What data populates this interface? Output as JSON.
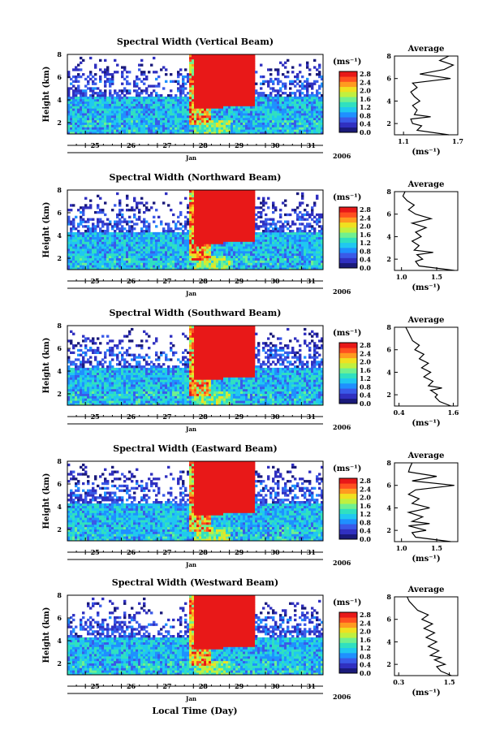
{
  "figure": {
    "xlabel": "Local Time (Day)",
    "colors": {
      "scale": [
        "#1a1a7a",
        "#3030c0",
        "#3a5ae8",
        "#1f90ff",
        "#20c8f0",
        "#30e0c0",
        "#70f090",
        "#c0f040",
        "#f0e020",
        "#ff9a20",
        "#ff5020",
        "#e81818"
      ]
    }
  },
  "chart_data": [
    {
      "type": "heatmap",
      "title": "Spectral Width (Vertical Beam)",
      "ylabel": "Height (km)",
      "ylim": [
        1,
        8
      ],
      "yticks": [
        2,
        4,
        6,
        8
      ],
      "xlim": [
        24.5,
        31.6
      ],
      "xticks": [
        "25",
        "26",
        "27",
        "28",
        "29",
        "30",
        "31"
      ],
      "month": "Jan",
      "year": "2006",
      "colorbar": {
        "unit": "(ms⁻¹)",
        "ticks": [
          "2.8",
          "2.4",
          "2.0",
          "1.6",
          "1.2",
          "0.8",
          "0.4",
          "0.0"
        ],
        "range": [
          0,
          2.8
        ]
      },
      "average_profile": {
        "title": "Average",
        "xlabel": "(ms⁻¹)",
        "xticks": [
          "1.1",
          "1.7"
        ],
        "xlim": [
          1.0,
          1.7
        ],
        "ylim": [
          1,
          8
        ],
        "yticks": [
          2,
          4,
          6,
          8
        ],
        "height": [
          1.0,
          1.4,
          1.8,
          2.0,
          2.4,
          2.6,
          2.8,
          3.2,
          3.6,
          4.0,
          4.4,
          4.8,
          5.2,
          5.6,
          6.0,
          6.4,
          6.8,
          7.2,
          7.6,
          8.0
        ],
        "value": [
          1.6,
          1.25,
          1.3,
          1.2,
          1.18,
          1.4,
          1.22,
          1.25,
          1.2,
          1.28,
          1.22,
          1.18,
          1.25,
          1.2,
          1.62,
          1.28,
          1.55,
          1.65,
          1.5,
          1.6
        ]
      }
    },
    {
      "type": "heatmap",
      "title": "Spectral Width (Northward Beam)",
      "ylabel": "Height (km)",
      "ylim": [
        1,
        8
      ],
      "yticks": [
        2,
        4,
        6,
        8
      ],
      "xlim": [
        24.5,
        31.6
      ],
      "xticks": [
        "25",
        "26",
        "27",
        "28",
        "29",
        "30",
        "31"
      ],
      "month": "Jan",
      "year": "2006",
      "colorbar": {
        "unit": "(ms⁻¹)",
        "ticks": [
          "2.8",
          "2.4",
          "2.0",
          "1.6",
          "1.2",
          "0.8",
          "0.4",
          "0.0"
        ],
        "range": [
          0,
          2.8
        ]
      },
      "average_profile": {
        "title": "Average",
        "xlabel": "(ms⁻¹)",
        "xticks": [
          "1.0",
          "1.5"
        ],
        "xlim": [
          0.9,
          1.8
        ],
        "ylim": [
          1,
          8
        ],
        "yticks": [
          2,
          4,
          6,
          8
        ],
        "height": [
          1.0,
          1.4,
          1.8,
          2.0,
          2.4,
          2.6,
          2.8,
          3.2,
          3.6,
          4.0,
          4.4,
          4.8,
          5.2,
          5.6,
          6.0,
          6.4,
          6.8,
          7.2,
          7.6,
          8.0
        ],
        "value": [
          1.75,
          1.25,
          1.2,
          1.3,
          1.22,
          1.45,
          1.18,
          1.25,
          1.15,
          1.28,
          1.2,
          1.35,
          1.15,
          1.42,
          1.2,
          1.1,
          1.18,
          1.08,
          1.02,
          1.05
        ]
      }
    },
    {
      "type": "heatmap",
      "title": "Spectral Width (Southward Beam)",
      "ylabel": "Height (km)",
      "ylim": [
        1,
        8
      ],
      "yticks": [
        2,
        4,
        6,
        8
      ],
      "xlim": [
        24.5,
        31.6
      ],
      "xticks": [
        "25",
        "26",
        "27",
        "28",
        "29",
        "30",
        "31"
      ],
      "month": "Jan",
      "year": "2006",
      "colorbar": {
        "unit": "(ms⁻¹)",
        "ticks": [
          "2.8",
          "2.4",
          "2.0",
          "1.6",
          "1.2",
          "0.8",
          "0.4",
          "0.0"
        ],
        "range": [
          0,
          2.8
        ]
      },
      "average_profile": {
        "title": "Average",
        "xlabel": "(ms⁻¹)",
        "xticks": [
          "0.4",
          "1.6"
        ],
        "xlim": [
          0.3,
          1.7
        ],
        "ylim": [
          1,
          8
        ],
        "yticks": [
          2,
          4,
          6,
          8
        ],
        "height": [
          1.0,
          1.4,
          1.8,
          2.0,
          2.4,
          2.6,
          2.8,
          3.2,
          3.6,
          4.0,
          4.4,
          4.8,
          5.2,
          5.6,
          6.0,
          6.4,
          6.8,
          7.2,
          7.6,
          8.0
        ],
        "value": [
          1.55,
          1.3,
          1.2,
          1.25,
          1.1,
          1.35,
          1.05,
          1.15,
          0.95,
          1.1,
          0.9,
          1.05,
          0.85,
          0.95,
          0.75,
          0.85,
          0.7,
          0.65,
          0.6,
          0.55
        ]
      }
    },
    {
      "type": "heatmap",
      "title": "Spectral Width (Eastward Beam)",
      "ylabel": "Height (km)",
      "ylim": [
        1,
        8
      ],
      "yticks": [
        2,
        4,
        6,
        8
      ],
      "xlim": [
        24.5,
        31.6
      ],
      "xticks": [
        "25",
        "26",
        "27",
        "28",
        "29",
        "30",
        "31"
      ],
      "month": "Jan",
      "year": "2006",
      "colorbar": {
        "unit": "(ms⁻¹)",
        "ticks": [
          "2.8",
          "2.4",
          "2.0",
          "1.6",
          "1.2",
          "0.8",
          "0.4",
          "0.0"
        ],
        "range": [
          0,
          2.8
        ]
      },
      "average_profile": {
        "title": "Average",
        "xlabel": "(ms⁻¹)",
        "xticks": [
          "1.0",
          "1.5"
        ],
        "xlim": [
          0.9,
          1.8
        ],
        "ylim": [
          1,
          8
        ],
        "yticks": [
          2,
          4,
          6,
          8
        ],
        "height": [
          1.0,
          1.4,
          1.8,
          2.0,
          2.4,
          2.6,
          2.8,
          3.2,
          3.6,
          4.0,
          4.4,
          4.8,
          5.2,
          5.6,
          6.0,
          6.4,
          6.8,
          7.2,
          7.6,
          8.0
        ],
        "value": [
          1.7,
          1.2,
          1.15,
          1.35,
          1.1,
          1.4,
          1.15,
          1.3,
          1.1,
          1.4,
          1.15,
          1.25,
          1.1,
          1.2,
          1.75,
          1.15,
          1.5,
          1.1,
          1.12,
          1.15
        ]
      }
    },
    {
      "type": "heatmap",
      "title": "Spectral Width (Westward Beam)",
      "ylabel": "Height (km)",
      "ylim": [
        1,
        8
      ],
      "yticks": [
        2,
        4,
        6,
        8
      ],
      "xlim": [
        24.5,
        31.6
      ],
      "xticks": [
        "25",
        "26",
        "27",
        "28",
        "29",
        "30",
        "31"
      ],
      "month": "Jan",
      "year": "2006",
      "colorbar": {
        "unit": "(ms⁻¹)",
        "ticks": [
          "2.8",
          "2.4",
          "2.0",
          "1.6",
          "1.2",
          "0.8",
          "0.4",
          "0.0"
        ],
        "range": [
          0,
          2.8
        ]
      },
      "average_profile": {
        "title": "Average",
        "xlabel": "(ms⁻¹)",
        "xticks": [
          "0.3",
          "1.5"
        ],
        "xlim": [
          0.2,
          1.7
        ],
        "ylim": [
          1,
          8
        ],
        "yticks": [
          2,
          4,
          6,
          8
        ],
        "height": [
          1.0,
          1.4,
          1.8,
          2.0,
          2.4,
          2.6,
          2.8,
          3.2,
          3.6,
          4.0,
          4.4,
          4.8,
          5.2,
          5.6,
          6.0,
          6.4,
          6.8,
          7.2,
          7.6,
          8.0
        ],
        "value": [
          1.55,
          1.3,
          1.2,
          1.4,
          1.15,
          1.3,
          1.05,
          1.25,
          1.0,
          1.2,
          0.95,
          1.15,
          0.9,
          1.1,
          0.85,
          1.0,
          0.75,
          0.65,
          0.55,
          0.5
        ]
      }
    }
  ]
}
